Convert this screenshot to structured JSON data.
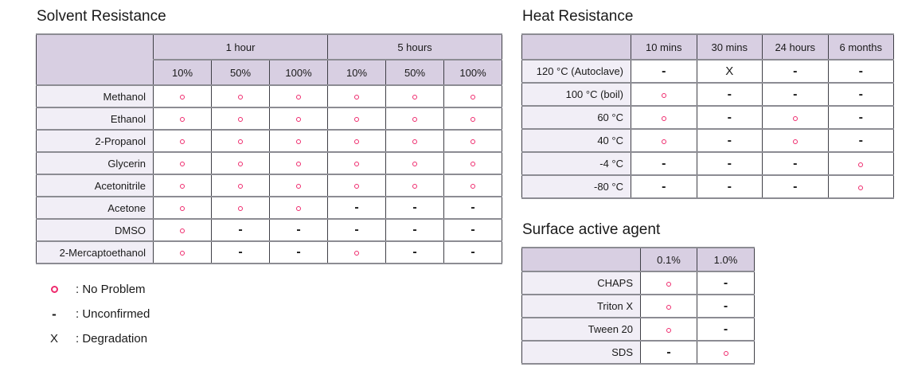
{
  "solvent": {
    "title": "Solvent Resistance",
    "col_groups": [
      {
        "label": "1 hour",
        "span": 3
      },
      {
        "label": "5 hours",
        "span": 3
      }
    ],
    "sub_columns": [
      "10%",
      "50%",
      "100%",
      "10%",
      "50%",
      "100%"
    ],
    "rows": [
      {
        "label": "Methanol",
        "values": [
          "O",
          "O",
          "O",
          "O",
          "O",
          "O"
        ]
      },
      {
        "label": "Ethanol",
        "values": [
          "O",
          "O",
          "O",
          "O",
          "O",
          "O"
        ]
      },
      {
        "label": "2-Propanol",
        "values": [
          "O",
          "O",
          "O",
          "O",
          "O",
          "O"
        ]
      },
      {
        "label": "Glycerin",
        "values": [
          "O",
          "O",
          "O",
          "O",
          "O",
          "O"
        ]
      },
      {
        "label": "Acetonitrile",
        "values": [
          "O",
          "O",
          "O",
          "O",
          "O",
          "O"
        ]
      },
      {
        "label": "Acetone",
        "values": [
          "O",
          "O",
          "O",
          "-",
          "-",
          "-"
        ]
      },
      {
        "label": "DMSO",
        "values": [
          "O",
          "-",
          "-",
          "-",
          "-",
          "-"
        ]
      },
      {
        "label": "2-Mercaptoethanol",
        "values": [
          "O",
          "-",
          "-",
          "O",
          "-",
          "-"
        ]
      }
    ]
  },
  "heat": {
    "title": "Heat Resistance",
    "columns": [
      "10 mins",
      "30 mins",
      "24 hours",
      "6 months"
    ],
    "rows": [
      {
        "label": "120 °C (Autoclave)",
        "values": [
          "-",
          "X",
          "-",
          "-"
        ]
      },
      {
        "label": "100 °C (boil)",
        "values": [
          "O",
          "-",
          "-",
          "-"
        ]
      },
      {
        "label": "60 °C",
        "values": [
          "O",
          "-",
          "O",
          "-"
        ]
      },
      {
        "label": "40 °C",
        "values": [
          "O",
          "-",
          "O",
          "-"
        ]
      },
      {
        "label": "-4 °C",
        "values": [
          "-",
          "-",
          "-",
          "O"
        ]
      },
      {
        "label": "-80 °C",
        "values": [
          "-",
          "-",
          "-",
          "O"
        ]
      }
    ]
  },
  "surfactant": {
    "title": "Surface active agent",
    "columns": [
      "0.1%",
      "1.0%"
    ],
    "rows": [
      {
        "label": "CHAPS",
        "values": [
          "O",
          "-"
        ]
      },
      {
        "label": "Triton X",
        "values": [
          "O",
          "-"
        ]
      },
      {
        "label": "Tween 20",
        "values": [
          "O",
          "-"
        ]
      },
      {
        "label": "SDS",
        "values": [
          "-",
          "O"
        ]
      }
    ]
  },
  "legend": {
    "items": [
      {
        "symbol": "O",
        "label": ": No Problem"
      },
      {
        "symbol": "-",
        "label": ": Unconfirmed"
      },
      {
        "symbol": "X",
        "label": ": Degradation"
      }
    ]
  },
  "colors": {
    "accent_pink": "#ee2a6d",
    "header_bg": "#d8cfe2",
    "row_header_bg": "#f1eef6",
    "border_dark": "#3f3f46",
    "border_mid": "#8c8c93",
    "text": "#1a1a1a"
  }
}
